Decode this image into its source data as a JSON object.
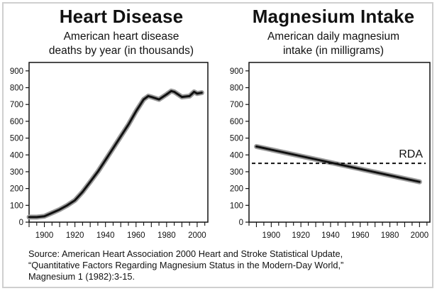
{
  "chart_data": [
    {
      "type": "line",
      "title": "Heart Disease",
      "subtitle_lines": [
        "American heart disease",
        "deaths by year (in thousands)"
      ],
      "x_ticks": [
        "1900",
        "1920",
        "1940",
        "1960",
        "1980",
        "2000"
      ],
      "y_ticks": [
        "0",
        "100",
        "200",
        "300",
        "400",
        "500",
        "600",
        "700",
        "800",
        "900"
      ],
      "xlim": [
        1890,
        2007
      ],
      "ylim": [
        0,
        950
      ],
      "grid": false,
      "series": [
        {
          "x": [
            1890,
            1895,
            1900,
            1905,
            1910,
            1915,
            1920,
            1925,
            1930,
            1935,
            1940,
            1945,
            1950,
            1955,
            1960,
            1965,
            1968,
            1970,
            1975,
            1980,
            1983,
            1985,
            1990,
            1995,
            1998,
            2000,
            2003
          ],
          "y": [
            30,
            30,
            35,
            55,
            75,
            100,
            130,
            180,
            240,
            300,
            370,
            440,
            510,
            580,
            660,
            730,
            750,
            745,
            730,
            760,
            780,
            775,
            745,
            750,
            775,
            765,
            770
          ]
        }
      ]
    },
    {
      "type": "line",
      "title": "Magnesium Intake",
      "subtitle_lines": [
        "American daily magnesium",
        "intake (in milligrams)"
      ],
      "x_ticks": [
        "1900",
        "1920",
        "1940",
        "1960",
        "1980",
        "2000"
      ],
      "y_ticks": [
        "0",
        "100",
        "200",
        "300",
        "400",
        "500",
        "600",
        "700",
        "800",
        "900"
      ],
      "xlim": [
        1885,
        2007
      ],
      "ylim": [
        0,
        950
      ],
      "grid": false,
      "series": [
        {
          "x": [
            1890,
            2000
          ],
          "y": [
            450,
            240
          ]
        }
      ],
      "reference_line": {
        "label": "RDA",
        "value": 350
      }
    }
  ],
  "source": {
    "lines": [
      "Source: American Heart Association 2000 Heart and Stroke Statistical Update,",
      "“Quantitative Factors Regarding Magnesium Status in the Modern-Day World,”",
      "Magnesium 1 (1982):3-15."
    ]
  }
}
